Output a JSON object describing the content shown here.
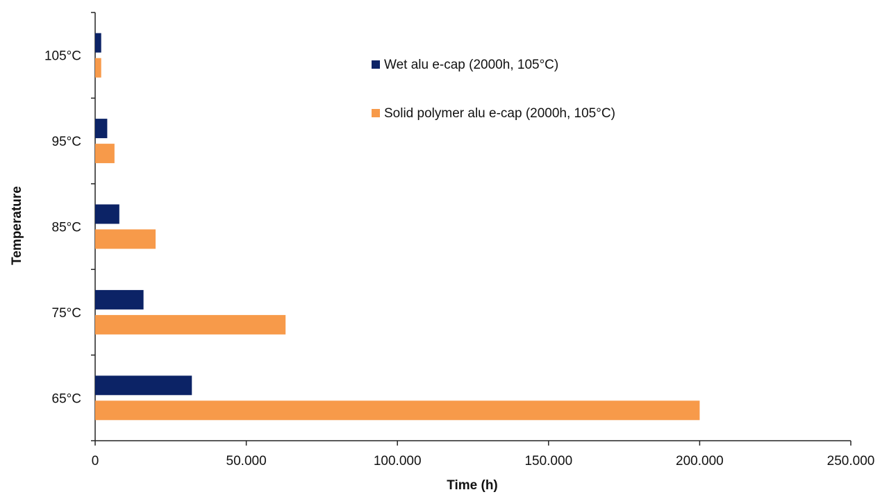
{
  "chart_data": {
    "type": "hbar",
    "x_label": "Time (h)",
    "y_label": "Temperature",
    "categories": [
      "105°C",
      "95°C",
      "85°C",
      "75°C",
      "65°C"
    ],
    "series": [
      {
        "name": "Wet alu e-cap (2000h, 105°C)",
        "color": "#0c2366",
        "values": [
          2000,
          4000,
          8000,
          16000,
          32000
        ]
      },
      {
        "name": "Solid polymer alu e-cap (2000h, 105°C)",
        "color": "#f79a4a",
        "values": [
          2000,
          6400,
          20000,
          63000,
          200000
        ]
      }
    ],
    "xlim": [
      0,
      250000
    ],
    "xticks": [
      0,
      {
        "value": 50000,
        "label": "50.000"
      },
      {
        "value": 100000,
        "label": "100.000"
      },
      {
        "value": 150000,
        "label": "150.000"
      },
      {
        "value": 200000,
        "label": "200.000"
      },
      {
        "value": 250000,
        "label": "250.000"
      }
    ],
    "grid": false
  }
}
